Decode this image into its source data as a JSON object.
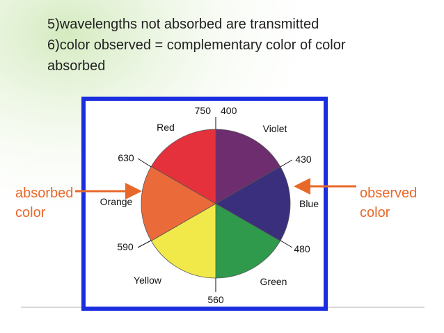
{
  "points": [
    "5)wavelengths not absorbed are transmitted",
    "6)color observed = complementary color of color absorbed"
  ],
  "wheel": {
    "colors": [
      "Red",
      "Violet",
      "Blue",
      "Green",
      "Yellow",
      "Orange"
    ],
    "wavelengths": [
      "750",
      "400",
      "430",
      "480",
      "560",
      "590",
      "630"
    ]
  },
  "left_label": "absorbed color",
  "right_label": "observed color"
}
